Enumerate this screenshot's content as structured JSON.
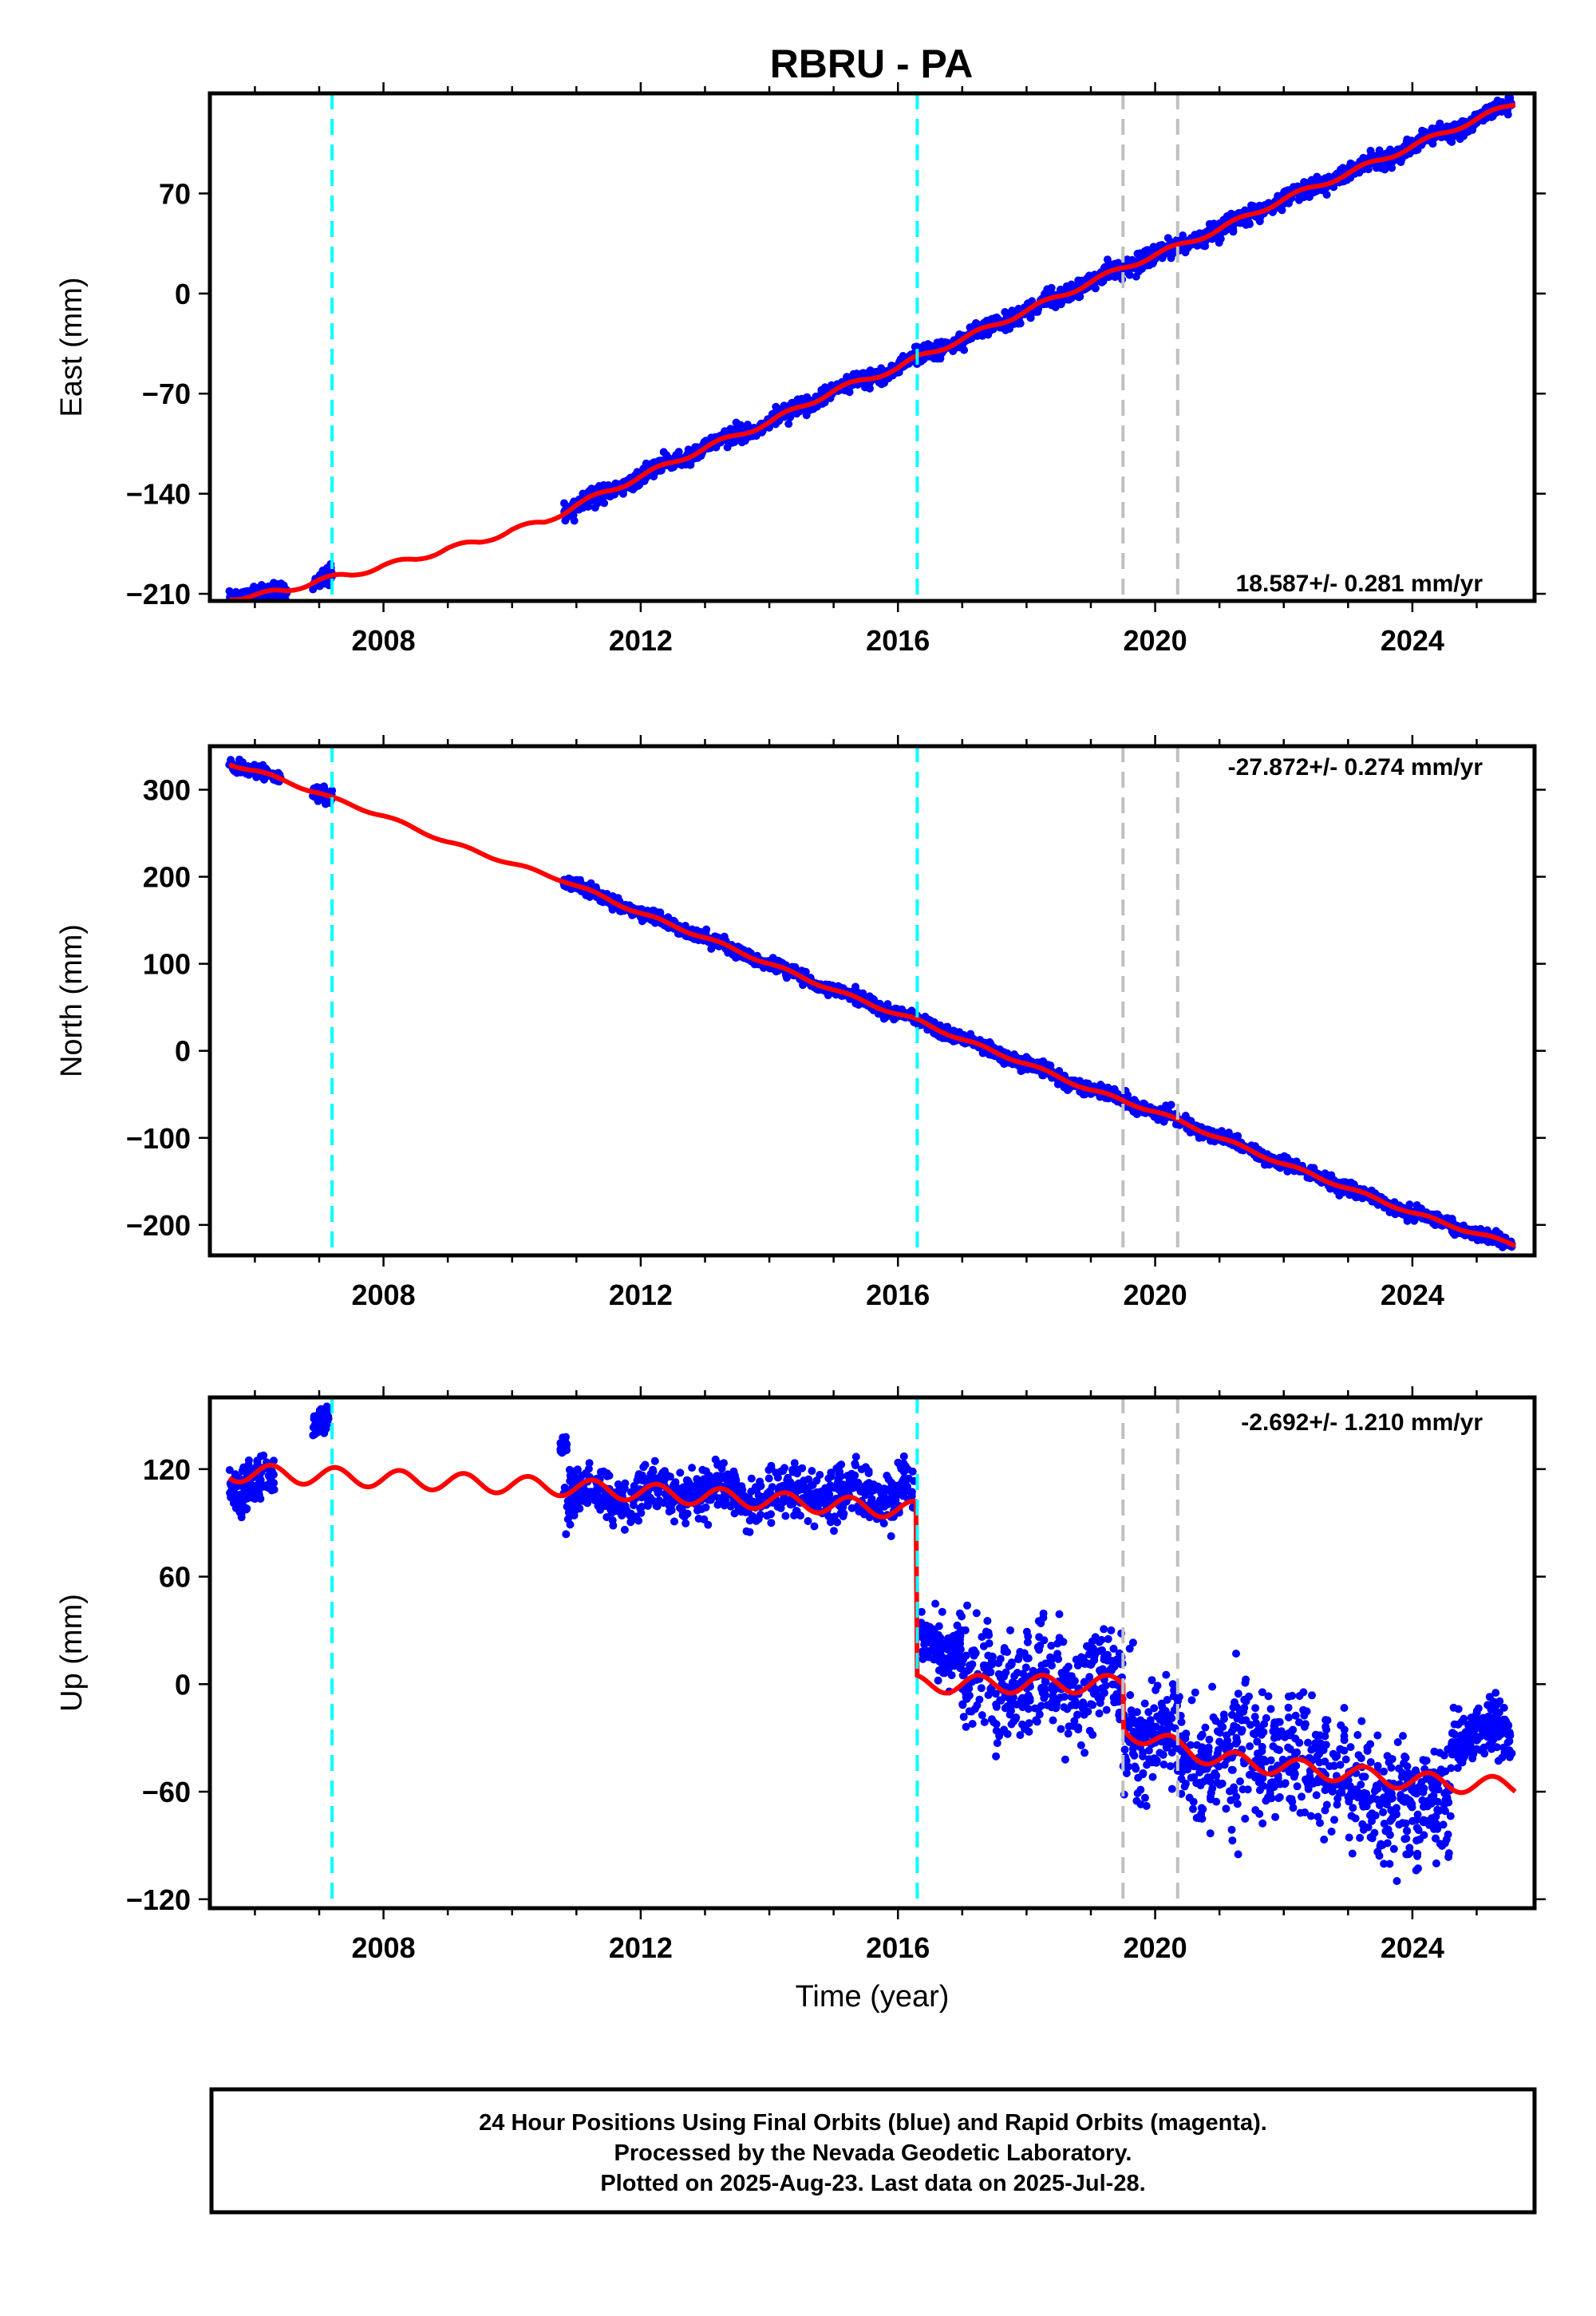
{
  "title": "RBRU - PA",
  "xlabel": "Time (year)",
  "colors": {
    "data": "#0000ff",
    "model": "#ff0000",
    "antenna_change": "#00ffff",
    "other_offset": "#c0c0c0"
  },
  "chart_data": [
    {
      "type": "scatter",
      "name": "east",
      "ylabel": "East (mm)",
      "rate_text": "18.587+/- 0.281 mm/yr",
      "xlim": [
        2005.3,
        2025.9
      ],
      "ylim": [
        -215,
        140
      ],
      "xticks": [
        2008,
        2012,
        2016,
        2020,
        2024
      ],
      "yticks": [
        -210,
        -140,
        -70,
        0,
        70
      ],
      "offsets_cyan": [
        2007.2,
        2016.3
      ],
      "offsets_gray": [
        2019.5,
        2020.35
      ],
      "trend_points": [
        [
          2005.6,
          -213
        ],
        [
          2006.5,
          -208
        ],
        [
          2007.0,
          -200
        ],
        [
          2007.5,
          -197
        ],
        [
          2008.0,
          -190
        ],
        [
          2008.5,
          -186
        ],
        [
          2009.0,
          -178
        ],
        [
          2009.5,
          -174
        ],
        [
          2010.0,
          -165
        ],
        [
          2010.5,
          -160
        ],
        [
          2011.0,
          -148
        ],
        [
          2012.0,
          -128
        ],
        [
          2013.0,
          -108
        ],
        [
          2014.0,
          -90
        ],
        [
          2015.0,
          -68
        ],
        [
          2016.0,
          -52
        ],
        [
          2016.3,
          -45
        ],
        [
          2017.0,
          -32
        ],
        [
          2018.0,
          -12
        ],
        [
          2019.0,
          8
        ],
        [
          2019.5,
          18
        ],
        [
          2020.0,
          27
        ],
        [
          2020.35,
          33
        ],
        [
          2021.0,
          45
        ],
        [
          2022.0,
          66
        ],
        [
          2023.0,
          84
        ],
        [
          2024.0,
          103
        ],
        [
          2025.0,
          122
        ],
        [
          2025.6,
          133
        ]
      ],
      "segments": [
        [
          2005.6,
          2006.5
        ],
        [
          2006.9,
          2007.2
        ],
        [
          2010.8,
          2025.55
        ]
      ],
      "scatter_sd": 2.8,
      "model_series": "red trend with seasonal signal"
    },
    {
      "type": "scatter",
      "name": "north",
      "ylabel": "North (mm)",
      "rate_text": "-27.872+/- 0.274 mm/yr",
      "xlim": [
        2005.3,
        2025.9
      ],
      "ylim": [
        -235,
        350
      ],
      "xticks": [
        2008,
        2012,
        2016,
        2020,
        2024
      ],
      "yticks": [
        -200,
        -100,
        0,
        100,
        200,
        300
      ],
      "offsets_cyan": [
        2007.2,
        2016.3
      ],
      "offsets_gray": [
        2019.5,
        2020.35
      ],
      "trend_points": [
        [
          2005.6,
          330
        ],
        [
          2006.0,
          322
        ],
        [
          2007.0,
          296
        ],
        [
          2007.2,
          290
        ],
        [
          2008.0,
          270
        ],
        [
          2009.0,
          240
        ],
        [
          2010.0,
          215
        ],
        [
          2010.8,
          196
        ],
        [
          2012.0,
          158
        ],
        [
          2013.0,
          130
        ],
        [
          2014.0,
          100
        ],
        [
          2015.0,
          70
        ],
        [
          2016.0,
          42
        ],
        [
          2016.3,
          35
        ],
        [
          2017.0,
          13
        ],
        [
          2018.0,
          -15
        ],
        [
          2019.0,
          -45
        ],
        [
          2019.5,
          -57
        ],
        [
          2020.0,
          -70
        ],
        [
          2020.35,
          -80
        ],
        [
          2021.0,
          -100
        ],
        [
          2022.0,
          -130
        ],
        [
          2023.0,
          -158
        ],
        [
          2024.0,
          -186
        ],
        [
          2025.0,
          -210
        ],
        [
          2025.6,
          -223
        ]
      ],
      "segments": [
        [
          2005.6,
          2006.4
        ],
        [
          2006.9,
          2007.2
        ],
        [
          2010.8,
          2025.55
        ]
      ],
      "scatter_sd": 3.5,
      "model_series": "red trend with seasonal signal"
    },
    {
      "type": "scatter",
      "name": "up",
      "ylabel": "Up (mm)",
      "rate_text": "-2.692+/- 1.210 mm/yr",
      "xlim": [
        2005.3,
        2025.9
      ],
      "ylim": [
        -125,
        160
      ],
      "xticks": [
        2008,
        2012,
        2016,
        2020,
        2024
      ],
      "yticks": [
        -120,
        -60,
        0,
        60,
        120
      ],
      "offsets_cyan": [
        2007.2,
        2016.3
      ],
      "offsets_gray": [
        2019.5,
        2020.35
      ],
      "trend_points": [
        [
          2005.6,
          118
        ],
        [
          2007.2,
          116
        ],
        [
          2010.8,
          110
        ],
        [
          2016.28,
          97
        ],
        [
          2016.3,
          0
        ],
        [
          2017.0,
          0
        ],
        [
          2019.5,
          0
        ],
        [
          2019.5,
          -25
        ],
        [
          2020.35,
          -35
        ],
        [
          2021.0,
          -42
        ],
        [
          2022.0,
          -46
        ],
        [
          2023.0,
          -50
        ],
        [
          2024.0,
          -54
        ],
        [
          2025.0,
          -56
        ],
        [
          2025.6,
          -57
        ]
      ],
      "data_segments": [
        {
          "range": [
            2005.6,
            2006.3
          ],
          "center": 112,
          "sd": 7
        },
        {
          "range": [
            2006.9,
            2007.15
          ],
          "center": 145,
          "sd": 4
        },
        {
          "range": [
            2010.75,
            2010.85
          ],
          "center": 138,
          "sd": 2
        },
        {
          "range": [
            2010.8,
            2016.28
          ],
          "center": 106,
          "sd": 7
        },
        {
          "range": [
            2016.35,
            2017.0
          ],
          "center": 25,
          "sd": 9
        },
        {
          "range": [
            2017.0,
            2019.5
          ],
          "center": 0,
          "sd": 14
        },
        {
          "range": [
            2019.5,
            2020.35
          ],
          "center": -30,
          "sd": 16
        },
        {
          "range": [
            2020.35,
            2023.0
          ],
          "center": -42,
          "sd": 17
        },
        {
          "range": [
            2023.0,
            2024.6
          ],
          "center": -65,
          "sd": 17
        },
        {
          "range": [
            2024.6,
            2025.55
          ],
          "center": -28,
          "sd": 7
        }
      ],
      "model_series": "red trend with offsets and seasonal signal"
    }
  ],
  "footer": {
    "line1": "24 Hour Positions Using Final Orbits (blue) and Rapid Orbits (magenta).",
    "line2": "Processed by the Nevada Geodetic Laboratory.",
    "line3": "Plotted on 2025-Aug-23. Last data on 2025-Jul-28."
  }
}
